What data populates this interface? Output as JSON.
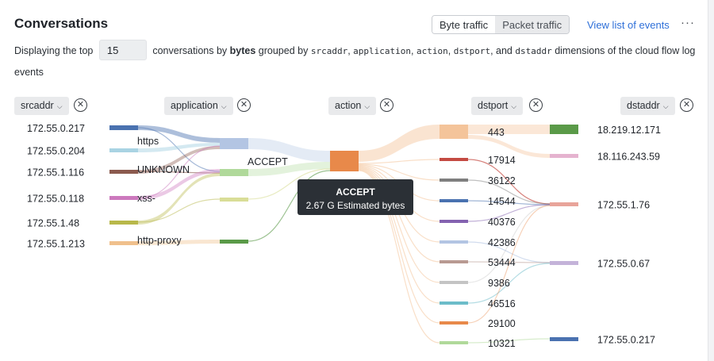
{
  "header": {
    "title": "Conversations",
    "traffic_toggle": {
      "options": [
        "Byte traffic",
        "Packet traffic"
      ],
      "selected": "Byte traffic"
    },
    "view_list_link": "View list of events",
    "more_icon": "ellipsis-icon"
  },
  "description": {
    "prefix": "Displaying the top",
    "top_count": "15",
    "middle": "conversations by",
    "metric": "bytes",
    "grouped_by": "grouped by",
    "dims": [
      "srcaddr",
      "application",
      "action",
      "dstport",
      "dstaddr"
    ],
    "sep1": ",",
    "sep2": ", and",
    "suffix": "dimensions of the cloud flow log events"
  },
  "dimensions": [
    {
      "label": "srcaddr"
    },
    {
      "label": "application"
    },
    {
      "label": "action"
    },
    {
      "label": "dstport"
    },
    {
      "label": "dstaddr"
    }
  ],
  "sankey": {
    "srcaddr": [
      {
        "label": "172.55.0.217",
        "color": "#4a72b0"
      },
      {
        "label": "172.55.0.204",
        "color": "#a9d3e3"
      },
      {
        "label": "172.55.1.116",
        "color": "#8b5a4e"
      },
      {
        "label": "172.55.0.118",
        "color": "#cc79bd"
      },
      {
        "label": "172.55.1.48",
        "color": "#b8b84a"
      },
      {
        "label": "172.55.1.213",
        "color": "#f0c08c"
      }
    ],
    "application": [
      {
        "label": "https",
        "color": "#b3c5e3"
      },
      {
        "label": "UNKNOWN",
        "color": "#b0d99a"
      },
      {
        "label": "xss-",
        "color": "#d9dd97"
      },
      {
        "label": "http-proxy",
        "color": "#5a9a48"
      }
    ],
    "action": [
      {
        "label": "ACCEPT",
        "color": "#e8894a"
      }
    ],
    "dstport": [
      {
        "label": "443",
        "color": "#f4c49a"
      },
      {
        "label": "17914",
        "color": "#c44a42"
      },
      {
        "label": "36122",
        "color": "#7f7f7f"
      },
      {
        "label": "14544",
        "color": "#4a72b0"
      },
      {
        "label": "40376",
        "color": "#8462b0"
      },
      {
        "label": "42386",
        "color": "#b3c5e3"
      },
      {
        "label": "53444",
        "color": "#b89a92"
      },
      {
        "label": "9386",
        "color": "#c4c4c4"
      },
      {
        "label": "46516",
        "color": "#6cbcc9"
      },
      {
        "label": "29100",
        "color": "#e8894a"
      },
      {
        "label": "10321",
        "color": "#b0d99a"
      }
    ],
    "dstaddr": [
      {
        "label": "18.219.12.171",
        "color": "#5a9a48"
      },
      {
        "label": "18.116.243.59",
        "color": "#e5b3cf"
      },
      {
        "label": "172.55.1.76",
        "color": "#e8a49a"
      },
      {
        "label": "172.55.0.67",
        "color": "#c4b3d9"
      },
      {
        "label": "172.55.0.217",
        "color": "#4a72b0"
      }
    ]
  },
  "tooltip": {
    "title": "ACCEPT",
    "value": "2.67 G Estimated bytes"
  }
}
